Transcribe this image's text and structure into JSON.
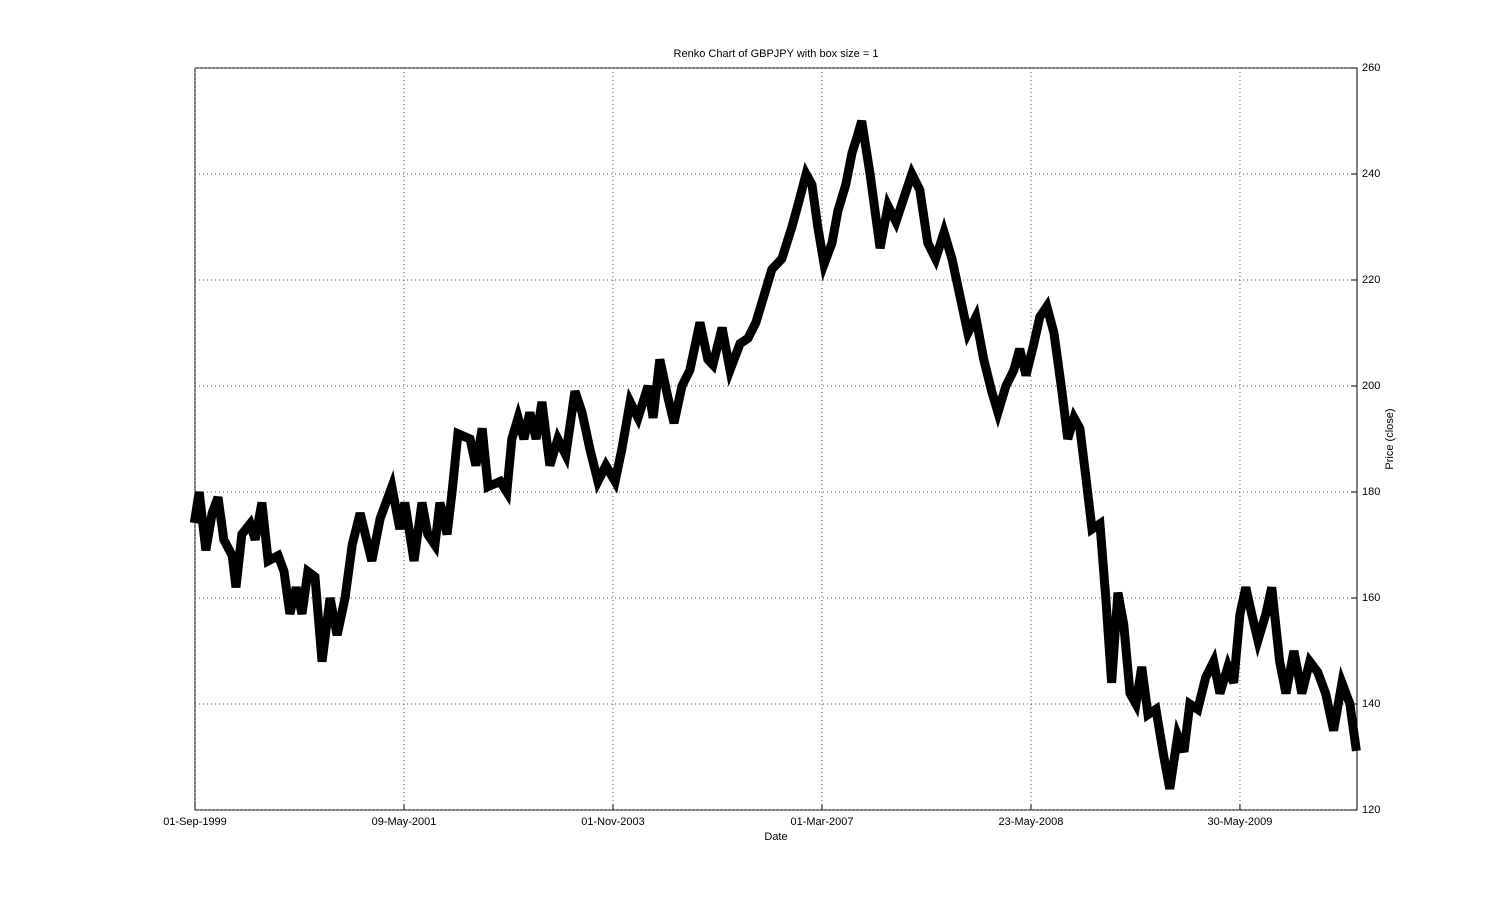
{
  "chart_data": {
    "type": "line",
    "title": "Renko Chart of GBPJPY with box size = 1",
    "x_label": "Date",
    "y_label": "Price (close)",
    "xlim": [
      0,
      2780
    ],
    "xticks": [
      {
        "value": 0,
        "label": "01-Sep-1999"
      },
      {
        "value": 500,
        "label": "09-May-2001"
      },
      {
        "value": 1000,
        "label": "01-Nov-2003"
      },
      {
        "value": 1500,
        "label": "01-Mar-2007"
      },
      {
        "value": 2000,
        "label": "23-May-2008"
      },
      {
        "value": 2500,
        "label": "30-May-2009"
      }
    ],
    "ylim": [
      120,
      260
    ],
    "yticks": [
      120,
      140,
      160,
      180,
      200,
      220,
      240,
      260
    ],
    "grid": true,
    "series": [
      {
        "name": "Price (close)",
        "color": "#000000",
        "x": [
          0,
          10,
          26,
          41,
          55,
          69,
          89,
          98,
          112,
          132,
          144,
          160,
          175,
          199,
          213,
          227,
          242,
          256,
          270,
          287,
          304,
          323,
          340,
          359,
          376,
          395,
          423,
          443,
          471,
          490,
          502,
          524,
          543,
          557,
          574,
          586,
          603,
          615,
          629,
          658,
          672,
          687,
          701,
          730,
          746,
          758,
          773,
          787,
          801,
          816,
          830,
          849,
          868,
          887,
          909,
          926,
          945,
          964,
          983,
          1005,
          1021,
          1041,
          1060,
          1084,
          1096,
          1112,
          1131,
          1146,
          1165,
          1184,
          1208,
          1227,
          1239,
          1261,
          1280,
          1304,
          1323,
          1342,
          1361,
          1380,
          1404,
          1428,
          1442,
          1462,
          1476,
          1490,
          1505,
          1524,
          1538,
          1557,
          1572,
          1584,
          1595,
          1615,
          1639,
          1658,
          1677,
          1698,
          1715,
          1734,
          1753,
          1772,
          1792,
          1811,
          1830,
          1849,
          1868,
          1887,
          1906,
          1921,
          1940,
          1959,
          1973,
          1988,
          2007,
          2021,
          2038,
          2055,
          2074,
          2088,
          2103,
          2117,
          2131,
          2146,
          2165,
          2179,
          2193,
          2208,
          2222,
          2237,
          2251,
          2265,
          2280,
          2299,
          2318,
          2332,
          2351,
          2366,
          2380,
          2399,
          2418,
          2437,
          2452,
          2471,
          2485,
          2500,
          2514,
          2528,
          2543,
          2562,
          2576,
          2595,
          2610,
          2629,
          2648,
          2667,
          2686,
          2705,
          2724,
          2744,
          2763,
          2777
        ],
        "values": [
          175,
          180,
          169,
          176,
          179,
          171,
          168,
          162,
          172,
          174,
          171,
          178,
          167,
          168,
          165,
          157,
          162,
          157,
          165,
          164,
          148,
          160,
          153,
          160,
          170,
          176,
          167,
          175,
          181,
          173,
          178,
          167,
          178,
          172,
          170,
          178,
          172,
          180,
          191,
          190,
          185,
          192,
          181,
          182,
          180,
          190,
          194,
          190,
          195,
          190,
          197,
          185,
          190,
          187,
          199,
          195,
          188,
          182,
          185,
          182,
          188,
          197,
          194,
          200,
          194,
          205,
          198,
          193,
          200,
          203,
          212,
          205,
          204,
          211,
          203,
          208,
          209,
          212,
          217,
          222,
          224,
          230,
          234,
          240,
          238,
          230,
          223,
          227,
          233,
          238,
          244,
          247,
          250,
          240,
          226,
          234,
          231,
          236,
          240,
          237,
          227,
          224,
          229,
          224,
          217,
          210,
          213,
          205,
          199,
          195,
          200,
          203,
          207,
          202,
          208,
          213,
          215,
          210,
          199,
          190,
          194,
          192,
          183,
          173,
          174,
          160,
          144,
          161,
          155,
          142,
          140,
          147,
          138,
          139,
          130,
          124,
          134,
          131,
          140,
          139,
          145,
          148,
          142,
          147,
          144,
          157,
          162,
          157,
          152,
          157,
          162,
          148,
          142,
          150,
          142,
          148,
          146,
          142,
          135,
          144,
          140,
          132
        ]
      }
    ]
  }
}
